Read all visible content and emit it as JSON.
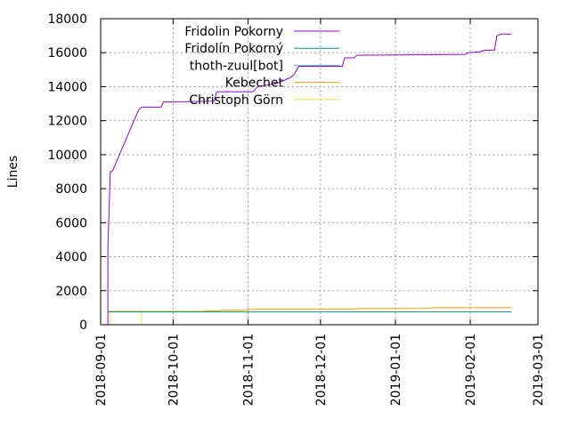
{
  "chart_data": {
    "type": "line",
    "title": "",
    "xlabel": "",
    "ylabel": "Lines",
    "ylim": [
      0,
      18000
    ],
    "xlim": [
      "2018-09-01",
      "2019-03-01"
    ],
    "x_ticks": [
      "2018-09-01",
      "2018-10-01",
      "2018-11-01",
      "2018-12-01",
      "2019-01-01",
      "2019-02-01",
      "2019-03-01"
    ],
    "y_ticks": [
      0,
      2000,
      4000,
      6000,
      8000,
      10000,
      12000,
      14000,
      16000,
      18000
    ],
    "grid": true,
    "legend": "top-center",
    "series": [
      {
        "name": "Fridolin Pokorny",
        "color": "#9400d3",
        "points": [
          [
            "2018-09-04",
            0
          ],
          [
            "2018-09-04",
            4600
          ],
          [
            "2018-09-05",
            9000
          ],
          [
            "2018-09-06",
            9050
          ],
          [
            "2018-09-07",
            9400
          ],
          [
            "2018-09-10",
            10400
          ],
          [
            "2018-09-13",
            11400
          ],
          [
            "2018-09-16",
            12400
          ],
          [
            "2018-09-17",
            12700
          ],
          [
            "2018-09-18",
            12800
          ],
          [
            "2018-09-26",
            12800
          ],
          [
            "2018-09-27",
            13100
          ],
          [
            "2018-10-18",
            13150
          ],
          [
            "2018-10-19",
            13700
          ],
          [
            "2018-11-03",
            13700
          ],
          [
            "2018-11-05",
            14000
          ],
          [
            "2018-11-13",
            14200
          ],
          [
            "2018-11-18",
            14500
          ],
          [
            "2018-11-20",
            14700
          ],
          [
            "2018-11-22",
            15200
          ],
          [
            "2018-12-10",
            15200
          ],
          [
            "2018-12-11",
            15700
          ],
          [
            "2018-12-15",
            15700
          ],
          [
            "2018-12-16",
            15850
          ],
          [
            "2019-01-30",
            15900
          ],
          [
            "2019-01-31",
            16000
          ],
          [
            "2019-02-05",
            16050
          ],
          [
            "2019-02-07",
            16150
          ],
          [
            "2019-02-11",
            16150
          ],
          [
            "2019-02-12",
            17000
          ],
          [
            "2019-02-14",
            17100
          ],
          [
            "2019-02-18",
            17100
          ]
        ]
      },
      {
        "name": "Fridolín Pokorný",
        "color": "#009e73",
        "points": [
          [
            "2018-09-04",
            750
          ],
          [
            "2019-02-18",
            750
          ]
        ]
      },
      {
        "name": "thoth-zuul[bot]",
        "color": "#56b4e9",
        "points": [
          [
            "2018-09-04",
            0
          ],
          [
            "2019-02-18",
            0
          ]
        ]
      },
      {
        "name": "Kebechet",
        "color": "#e69f00",
        "points": [
          [
            "2018-09-04",
            780
          ],
          [
            "2018-10-13",
            780
          ],
          [
            "2018-10-14",
            800
          ],
          [
            "2018-10-20",
            820
          ],
          [
            "2018-10-21",
            850
          ],
          [
            "2018-11-01",
            850
          ],
          [
            "2018-11-02",
            900
          ],
          [
            "2018-12-15",
            920
          ],
          [
            "2018-12-16",
            950
          ],
          [
            "2019-01-15",
            960
          ],
          [
            "2019-01-16",
            1000
          ],
          [
            "2019-02-18",
            1000
          ]
        ]
      },
      {
        "name": "Christoph Görn",
        "color": "#f0e442",
        "points": [
          [
            "2018-09-05",
            0
          ],
          [
            "2018-09-05",
            780
          ],
          [
            "2018-09-18",
            780
          ],
          [
            "2018-09-18",
            0
          ]
        ]
      }
    ]
  }
}
